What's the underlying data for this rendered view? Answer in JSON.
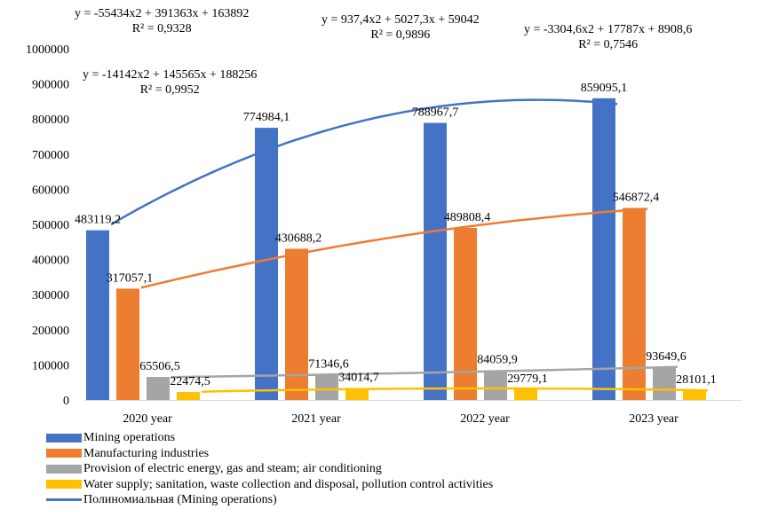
{
  "chart_data": {
    "type": "bar",
    "title": "",
    "xlabel": "",
    "ylabel": "",
    "categories": [
      "2020 year",
      "2021 year",
      "2022 year",
      "2023 year"
    ],
    "ylim": [
      0,
      1000000
    ],
    "yticks": [
      "0",
      "100000",
      "200000",
      "300000",
      "400000",
      "500000",
      "600000",
      "700000",
      "800000",
      "900000",
      "1000000"
    ],
    "ytick_values": [
      0,
      100000,
      200000,
      300000,
      400000,
      500000,
      600000,
      700000,
      800000,
      900000,
      1000000
    ],
    "grid": false,
    "legend_position": "bottom-left",
    "series": [
      {
        "name": "Mining operations",
        "color": "#4472C4",
        "values": [
          483119.2,
          774984.1,
          788967.7,
          859095.1
        ],
        "labels": [
          "483119,2",
          "774984,1",
          "788967,7",
          "859095,1"
        ]
      },
      {
        "name": "Manufacturing industries",
        "color": "#ED7D31",
        "values": [
          317057.1,
          430688.2,
          489808.4,
          546872.4
        ],
        "labels": [
          "317057,1",
          "430688,2",
          "489808,4",
          "546872,4"
        ]
      },
      {
        "name": "Provision of electric energy, gas and steam; air conditioning",
        "color": "#A5A5A5",
        "values": [
          65506.5,
          71346.6,
          84059.9,
          93649.6
        ],
        "labels": [
          "65506,5",
          "71346,6",
          "84059,9",
          "93649,6"
        ]
      },
      {
        "name": "Water supply; sanitation, waste collection and disposal, pollution control activities",
        "color": "#FFC000",
        "values": [
          22474.5,
          34014.7,
          29779.1,
          28101.1
        ],
        "labels": [
          "22474,5",
          "34014,7",
          "29779,1",
          "28101,1"
        ]
      }
    ],
    "trendlines": [
      {
        "series": "Mining operations",
        "type": "polynomial",
        "color": "#4472C4",
        "coef": [
          -55434,
          391363,
          163892
        ],
        "equation": "y = -55434x2 + 391363x + 163892",
        "r2": "R² = 0,9328"
      },
      {
        "series": "Manufacturing industries",
        "type": "polynomial",
        "color": "#ED7D31",
        "coef": [
          -14142,
          145565,
          188256
        ],
        "equation": "y = -14142x2 + 145565x + 188256",
        "r2": "R² = 0,9952"
      },
      {
        "series": "Provision of electric energy, gas and steam; air conditioning",
        "type": "polynomial",
        "color": "#A5A5A5",
        "coef": [
          937.4,
          5027.3,
          59042
        ],
        "equation": "y = 937,4x2 + 5027,3x + 59042",
        "r2": "R² = 0,9896"
      },
      {
        "series": "Water supply; sanitation, waste collection and disposal, pollution control activities",
        "type": "polynomial",
        "color": "#FFC000",
        "coef": [
          -3304.6,
          17787,
          8908.6
        ],
        "equation": "y = -3304,6x2 + 17787x + 8908,6",
        "r2": "R² = 0,7546"
      }
    ],
    "legend": [
      {
        "label": "Mining operations",
        "kind": "bar",
        "color": "#4472C4"
      },
      {
        "label": "Manufacturing industries",
        "kind": "bar",
        "color": "#ED7D31"
      },
      {
        "label": "Provision of electric energy, gas and steam; air conditioning",
        "kind": "bar",
        "color": "#A5A5A5"
      },
      {
        "label": "Water supply; sanitation, waste collection and disposal, pollution control activities",
        "kind": "bar",
        "color": "#FFC000"
      },
      {
        "label": "Полиномиальная (Mining operations)",
        "kind": "line",
        "color": "#4472C4"
      }
    ]
  }
}
